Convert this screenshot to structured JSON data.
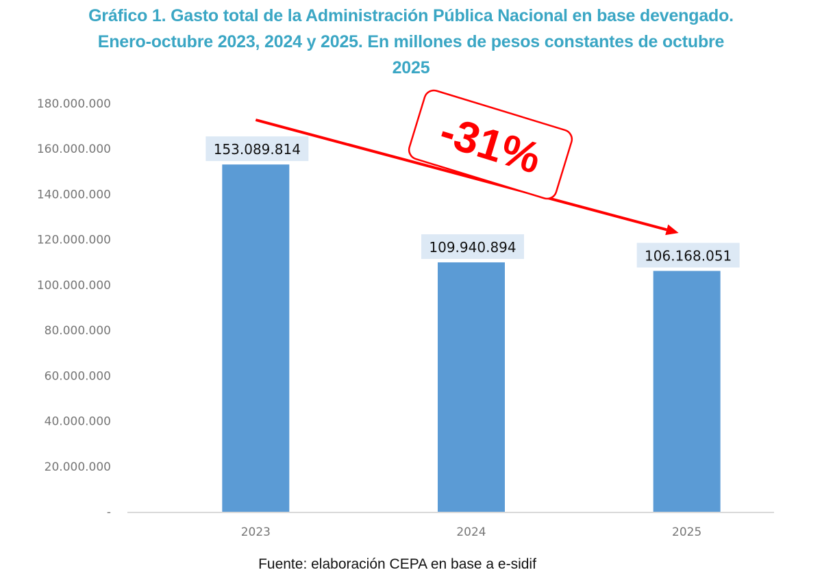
{
  "title_lines": [
    "Gráfico 1. Gasto total de la Administración Pública Nacional en base devengado.",
    "Enero-octubre 2023, 2024 y 2025. En millones de pesos constantes de octubre",
    "2025"
  ],
  "source": "Fuente: elaboración CEPA en base a e-sidif",
  "colors": {
    "title": "#3aa6c4",
    "bar": "#5b9bd5",
    "label_bg": "#dde9f5",
    "annotation": "#ff0000",
    "axis_text": "#767676"
  },
  "chart_data": {
    "type": "bar",
    "title": "Gráfico 1. Gasto total de la Administración Pública Nacional en base devengado. Enero-octubre 2023, 2024 y 2025. En millones de pesos constantes de octubre 2025",
    "categories": [
      "2023",
      "2024",
      "2025"
    ],
    "values": [
      153089814,
      109940894,
      106168051
    ],
    "data_labels": [
      "153.089.814",
      "109.940.894",
      "106.168.051"
    ],
    "xlabel": "",
    "ylabel": "",
    "ylim": [
      0,
      180000000
    ],
    "yticks": [
      0,
      20000000,
      40000000,
      60000000,
      80000000,
      100000000,
      120000000,
      140000000,
      160000000,
      180000000
    ],
    "ytick_labels": [
      "-",
      "20.000.000",
      "40.000.000",
      "60.000.000",
      "80.000.000",
      "100.000.000",
      "120.000.000",
      "140.000.000",
      "160.000.000",
      "180.000.000"
    ],
    "grid": false,
    "legend": "none",
    "annotations": [
      {
        "type": "arrow",
        "from": "2023",
        "to": "2025",
        "color": "#ff0000"
      },
      {
        "type": "badge",
        "text": "-31%",
        "color": "#ff0000"
      }
    ]
  }
}
